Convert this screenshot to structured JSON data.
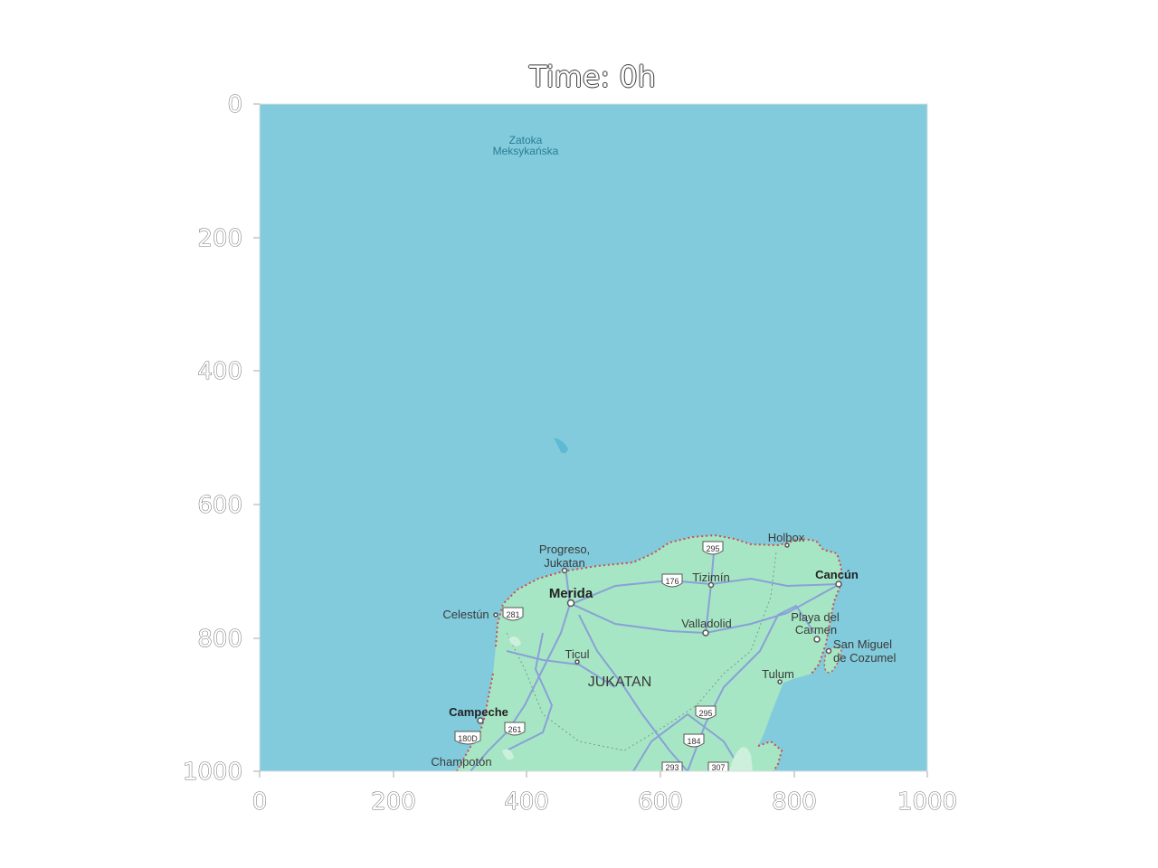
{
  "title": "Time: 0h",
  "axes": {
    "x_ticks": [
      "0",
      "200",
      "400",
      "600",
      "800",
      "1000"
    ],
    "y_ticks": [
      "0",
      "200",
      "400",
      "600",
      "800",
      "1000"
    ],
    "xlim": [
      0,
      1000
    ],
    "ylim": [
      0,
      1000
    ],
    "y_inverted": true
  },
  "map": {
    "sea_label": [
      "Zatoka",
      "Meksykańska"
    ],
    "region_label": "JUKATAN",
    "places": {
      "progreso": [
        "Progreso,",
        "Jukatan"
      ],
      "merida": "Merida",
      "celestun": "Celestún",
      "tizimin": "Tizimín",
      "holbox": "Holbox",
      "cancun": "Cancún",
      "valladolid": "Valladolid",
      "playa": [
        "Playa del",
        "Carmen"
      ],
      "cozumel": [
        "San Miguel",
        "de Cozumel"
      ],
      "ticul": "Ticul",
      "tulum": "Tulum",
      "campeche": "Campeche",
      "champoton": "Champotón"
    },
    "shields": {
      "s295a": "295",
      "s176": "176",
      "s281": "281",
      "s295b": "295",
      "s261": "261",
      "s180d": "180D",
      "s184": "184",
      "s293": "293",
      "s307": "307"
    },
    "colors": {
      "sea": "#82cbdc",
      "land": "#a6e6c4",
      "border": "#d24b4b",
      "road": "#8aa0d8"
    }
  }
}
